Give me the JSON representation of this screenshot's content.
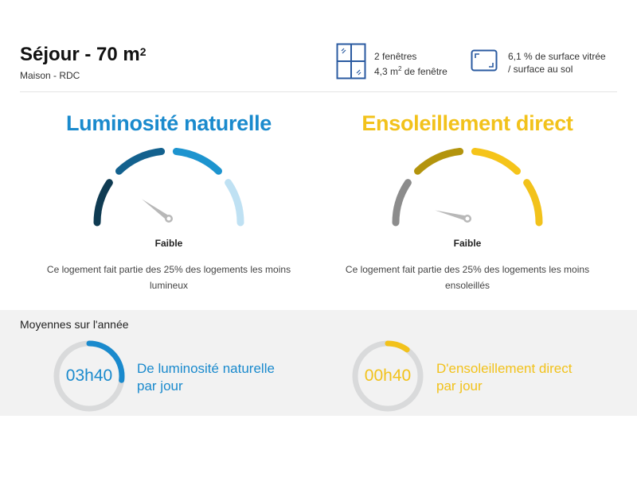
{
  "room": {
    "title": "Séjour - 70 m",
    "title_exponent": "2",
    "subtitle": "Maison - RDC"
  },
  "windows": {
    "icon": "window-icon",
    "count_text": "2 fenêtres",
    "area_prefix": "4,3 m",
    "area_exponent": "2",
    "area_suffix": " de fenêtre"
  },
  "glazing": {
    "icon": "glazing-ratio-icon",
    "line1": "6,1 % de surface vitrée",
    "line2": "/ surface au sol"
  },
  "luminosity": {
    "title": "Luminosité naturelle",
    "level": "Faible",
    "level_value": 0.2,
    "description": "Ce logement fait partie des 25% des logements les moins lumineux",
    "color": "#1a8acd",
    "segment_colors": [
      "#0f3b52",
      "#13618e",
      "#1d94cf",
      "#bfe1f3"
    ]
  },
  "sunshine": {
    "title": "Ensoleillement direct",
    "level": "Faible",
    "level_value": 0.08,
    "description": "Ce logement fait partie des 25% des logements les moins ensoleillés",
    "color": "#f2c21b",
    "segment_colors": [
      "#8c8c8c",
      "#b3940d",
      "#f5c41a",
      "#f2c21b"
    ]
  },
  "averages": {
    "title": "Moyennes sur l'année",
    "luminosity": {
      "value": "03h40",
      "fraction": 0.27,
      "label_line1": "De luminosité naturelle",
      "label_line2": "par jour"
    },
    "sunshine": {
      "value": "00h40",
      "fraction": 0.1,
      "label_line1": "D'ensoleillement direct",
      "label_line2": "par jour"
    }
  }
}
